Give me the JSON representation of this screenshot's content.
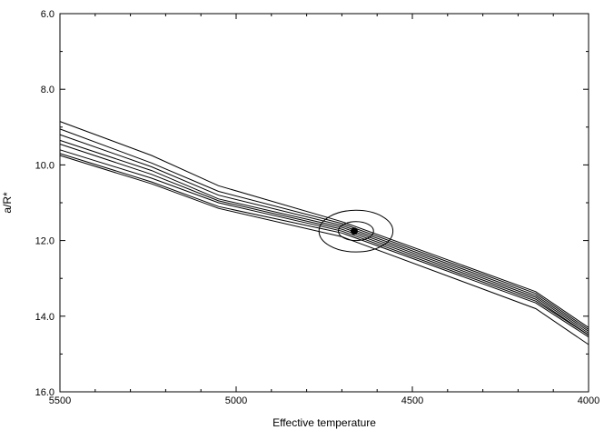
{
  "chart_data": {
    "type": "line",
    "title": "",
    "xlabel": "Effective temperature",
    "ylabel": "a/R*",
    "xlim": [
      5500,
      4000
    ],
    "ylim": [
      6.0,
      16.0
    ],
    "x_reversed": true,
    "y_reversed": true,
    "x_ticks": [
      5500,
      5000,
      4500,
      4000
    ],
    "x_tick_labels": [
      "5500",
      "5000",
      "4500",
      "4000"
    ],
    "y_ticks": [
      6.0,
      8.0,
      10.0,
      12.0,
      14.0,
      16.0
    ],
    "y_tick_labels": [
      "6.0",
      "8.0",
      "10.0",
      "12.0",
      "14.0",
      "16.0"
    ],
    "grid": false,
    "series": [
      {
        "values": [
          [
            5500,
            8.85
          ],
          [
            5240,
            9.75
          ],
          [
            5050,
            10.55
          ],
          [
            4700,
            11.5
          ],
          [
            4150,
            13.35
          ],
          [
            4000,
            14.3
          ]
        ]
      },
      {
        "values": [
          [
            5500,
            9.05
          ],
          [
            5240,
            9.95
          ],
          [
            5050,
            10.7
          ],
          [
            4700,
            11.55
          ],
          [
            4150,
            13.4
          ],
          [
            4000,
            14.35
          ]
        ]
      },
      {
        "values": [
          [
            5500,
            9.2
          ],
          [
            5240,
            10.05
          ],
          [
            5050,
            10.8
          ],
          [
            4700,
            11.6
          ],
          [
            4150,
            13.45
          ],
          [
            4000,
            14.4
          ]
        ]
      },
      {
        "values": [
          [
            5500,
            9.35
          ],
          [
            5240,
            10.15
          ],
          [
            5050,
            10.9
          ],
          [
            4700,
            11.65
          ],
          [
            4150,
            13.5
          ],
          [
            4000,
            14.45
          ]
        ]
      },
      {
        "values": [
          [
            5500,
            9.45
          ],
          [
            5240,
            10.25
          ],
          [
            5050,
            10.95
          ],
          [
            4700,
            11.7
          ],
          [
            4150,
            13.55
          ],
          [
            4000,
            14.5
          ]
        ]
      },
      {
        "values": [
          [
            5500,
            9.6
          ],
          [
            5240,
            10.35
          ],
          [
            5050,
            11.0
          ],
          [
            4700,
            11.75
          ],
          [
            4150,
            13.6
          ],
          [
            4000,
            14.5
          ]
        ]
      },
      {
        "values": [
          [
            5500,
            9.7
          ],
          [
            5240,
            10.45
          ],
          [
            5050,
            11.1
          ],
          [
            4700,
            11.8
          ],
          [
            4150,
            13.65
          ],
          [
            4000,
            14.55
          ]
        ]
      },
      {
        "values": [
          [
            5500,
            9.75
          ],
          [
            5240,
            10.5
          ],
          [
            5050,
            11.15
          ],
          [
            4700,
            11.9
          ],
          [
            4150,
            13.8
          ],
          [
            4000,
            14.75
          ]
        ]
      }
    ],
    "contours": [
      {
        "center": [
          4660,
          11.75
        ],
        "rx": 105,
        "ry": 0.55
      },
      {
        "center": [
          4660,
          11.75
        ],
        "rx": 50,
        "ry": 0.25
      }
    ],
    "best_fit_point": {
      "x": 4665,
      "y": 11.75
    }
  }
}
